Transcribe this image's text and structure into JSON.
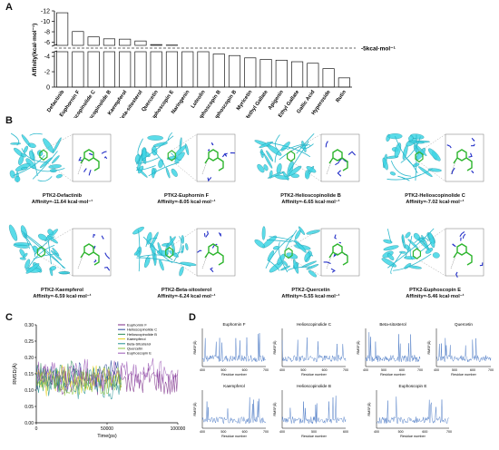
{
  "panel_labels": {
    "a": "A",
    "b": "B",
    "c": "C",
    "d": "D"
  },
  "colors": {
    "bar": "#1a1a1a",
    "protein": "#3fd6e6",
    "ligand": "#2db52d",
    "residue": "#2430c8",
    "rmsf": "#4a78c4"
  },
  "chart_data": [
    {
      "type": "bar",
      "panel": "A",
      "ylabel": "Affinity(kcal·mol⁻¹)",
      "threshold_label": "-5kcal·mol⁻¹",
      "threshold": -5,
      "categories": [
        "Defactinib",
        "Euphornin F",
        "Helioscopinolide C",
        "Helioscopinolide B",
        "Kaempferol",
        "Beta-sitosterol",
        "Quercetin",
        "Euphoscopin E",
        "Naringenin",
        "Luteolin",
        "Epieuphoscopin B",
        "Euphoscopin B",
        "Myricetin",
        "Methyl Gallate",
        "Apigenin",
        "Ethyl Gallate",
        "Gallic Acid",
        "Hyperoside",
        "Rutin"
      ],
      "values": [
        -11.64,
        -8.05,
        -7.02,
        -6.65,
        -6.59,
        -6.24,
        -5.55,
        -5.46,
        -4.9,
        -4.6,
        -4.3,
        -4.1,
        -3.8,
        -3.6,
        -3.5,
        -3.3,
        -3.1,
        -2.4,
        -1.2
      ],
      "yticks_upper": [
        "-12",
        "-10",
        "-8",
        "-6"
      ],
      "yticks_lower": [
        "-4",
        "-2",
        "0"
      ],
      "ylim": [
        -12,
        0
      ],
      "axis_break": [
        -5.4,
        -4.6
      ]
    },
    {
      "type": "line",
      "panel": "C",
      "xlabel": "Time(ps)",
      "ylabel": "RMSD(Å)",
      "xticks": [
        "0",
        "50000",
        "100000"
      ],
      "yticks": [
        "0.00",
        "0.05",
        "0.10",
        "0.15",
        "0.20",
        "0.25",
        "0.30"
      ],
      "xlim": [
        0,
        100000
      ],
      "ylim": [
        0,
        0.3
      ],
      "series": [
        {
          "name": "Euphornin F",
          "color": "#7a2a86",
          "mean": 0.13
        },
        {
          "name": "Helioscopinolide C",
          "color": "#2e4a9c",
          "mean": 0.145
        },
        {
          "name": "Helioscopinolide B",
          "color": "#2e8b57",
          "mean": 0.14
        },
        {
          "name": "Kaempferol",
          "color": "#e8d21a",
          "mean": 0.13
        },
        {
          "name": "Beta-Sitosterol",
          "color": "#1f8f8f",
          "mean": 0.12
        },
        {
          "name": "Quercetin",
          "color": "#8cc63f",
          "mean": 0.125
        },
        {
          "name": "Euphoscopin E",
          "color": "#9b59b6",
          "mean": 0.15
        }
      ]
    },
    {
      "type": "line",
      "panel": "D",
      "ylabel": "RMSF(Å)",
      "xlabel": "Residue number",
      "subplots": [
        {
          "title": "Euphornin F",
          "xticks": [
            "400",
            "500",
            "600",
            "700"
          ]
        },
        {
          "title": "Helioscopinolide C",
          "xticks": [
            "400",
            "500",
            "600",
            "700"
          ]
        },
        {
          "title": "Beta-sitosterol",
          "xticks": [
            "400",
            "500",
            "600",
            "700"
          ]
        },
        {
          "title": "Quercetin",
          "xticks": [
            "400",
            "500",
            "600",
            "700"
          ]
        },
        {
          "title": "Kaempferol",
          "xticks": [
            "400",
            "500",
            "600",
            "700"
          ]
        },
        {
          "title": "Helioscopinolide B",
          "xticks": [
            "400",
            "500",
            "600"
          ]
        },
        {
          "title": "Euphoscopin E",
          "xticks": [
            "400",
            "500",
            "600",
            "700"
          ]
        }
      ]
    }
  ],
  "docking": [
    {
      "title": "PTK2-Defactinib",
      "affinity": "Affinity=-11.64 kcal·mol⁻¹"
    },
    {
      "title": "PTK2-Euphornin F",
      "affinity": "Affinity=-8.05 kcal·mol⁻¹"
    },
    {
      "title": "PTK2-Helioscopinolide B",
      "affinity": "Affinity=-6.65 kcal·mol⁻¹"
    },
    {
      "title": "PTK2-Helioscopinolide C",
      "affinity": "Affinity=-7.02 kcal·mol⁻¹"
    },
    {
      "title": "PTK2-Kaempferol",
      "affinity": "Affinity=-6.59 kcal·mol⁻¹"
    },
    {
      "title": "PTK2-Beta-sitosterol",
      "affinity": "Affinity=-6.24 kcal·mol⁻¹"
    },
    {
      "title": "PTK2-Quercetin",
      "affinity": "Affinity=-5.55 kcal·mol⁻¹"
    },
    {
      "title": "PTK2-Euphoscopin E",
      "affinity": "Affinity=-5.46 kcal·mol⁻¹"
    }
  ]
}
